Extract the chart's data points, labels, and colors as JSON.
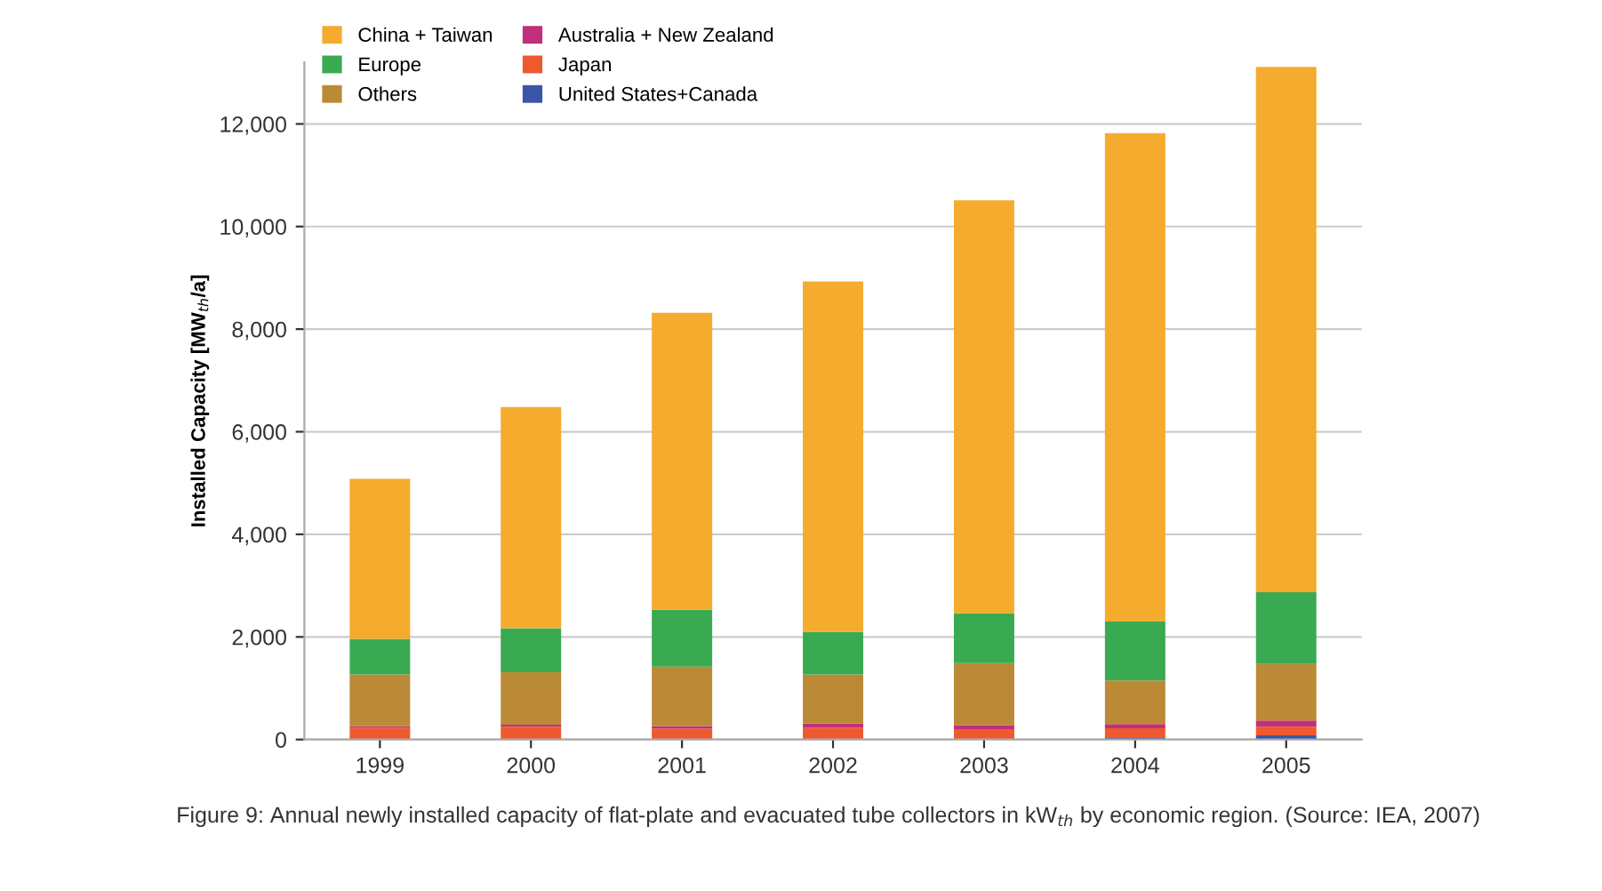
{
  "chart_data": {
    "type": "bar",
    "stacked": true,
    "ylabel": "Installed Capacity [MW$_{th}$/a]",
    "categories": [
      "1999",
      "2000",
      "2001",
      "2002",
      "2003",
      "2004",
      "2005"
    ],
    "series": [
      {
        "name": "United States+Canada",
        "color": "#3b56a6",
        "values": [
          null,
          null,
          null,
          null,
          null,
          30,
          80
        ]
      },
      {
        "name": "Japan",
        "color": "#ee5a2e",
        "values": [
          230,
          250,
          210,
          230,
          200,
          190,
          170
        ]
      },
      {
        "name": "Australia + New Zealand",
        "color": "#c0307a",
        "values": [
          30,
          40,
          50,
          80,
          80,
          80,
          120
        ]
      },
      {
        "name": "Others",
        "color": "#bb8a36",
        "values": [
          1010,
          1020,
          1160,
          960,
          1210,
          850,
          1100
        ]
      },
      {
        "name": "Europe",
        "color": "#3aaa52",
        "values": [
          690,
          860,
          1110,
          830,
          970,
          1150,
          1400
        ]
      },
      {
        "name": "China + Taiwan",
        "color": "#f5ab2e",
        "values": [
          3120,
          4310,
          5790,
          6830,
          8050,
          9520,
          10240
        ]
      }
    ],
    "ylim": [
      0,
      13200
    ],
    "yticks": [
      {
        "value": 0,
        "label": "0"
      },
      {
        "value": 2000,
        "label": "2,000"
      },
      {
        "value": 4000,
        "label": "4,000"
      },
      {
        "value": 6000,
        "label": "6,000"
      },
      {
        "value": 8000,
        "label": "8,000"
      },
      {
        "value": 10000,
        "label": "10,000"
      },
      {
        "value": 12000,
        "label": "12,000"
      }
    ],
    "grid": "y",
    "legend": "top left",
    "annotations": [
      "Figure 9: Annual newly installed capacity of flat-plate and evacuated tube collectors in kW$_{th}$ by economic region. (Source: IEA, 2007)"
    ]
  }
}
